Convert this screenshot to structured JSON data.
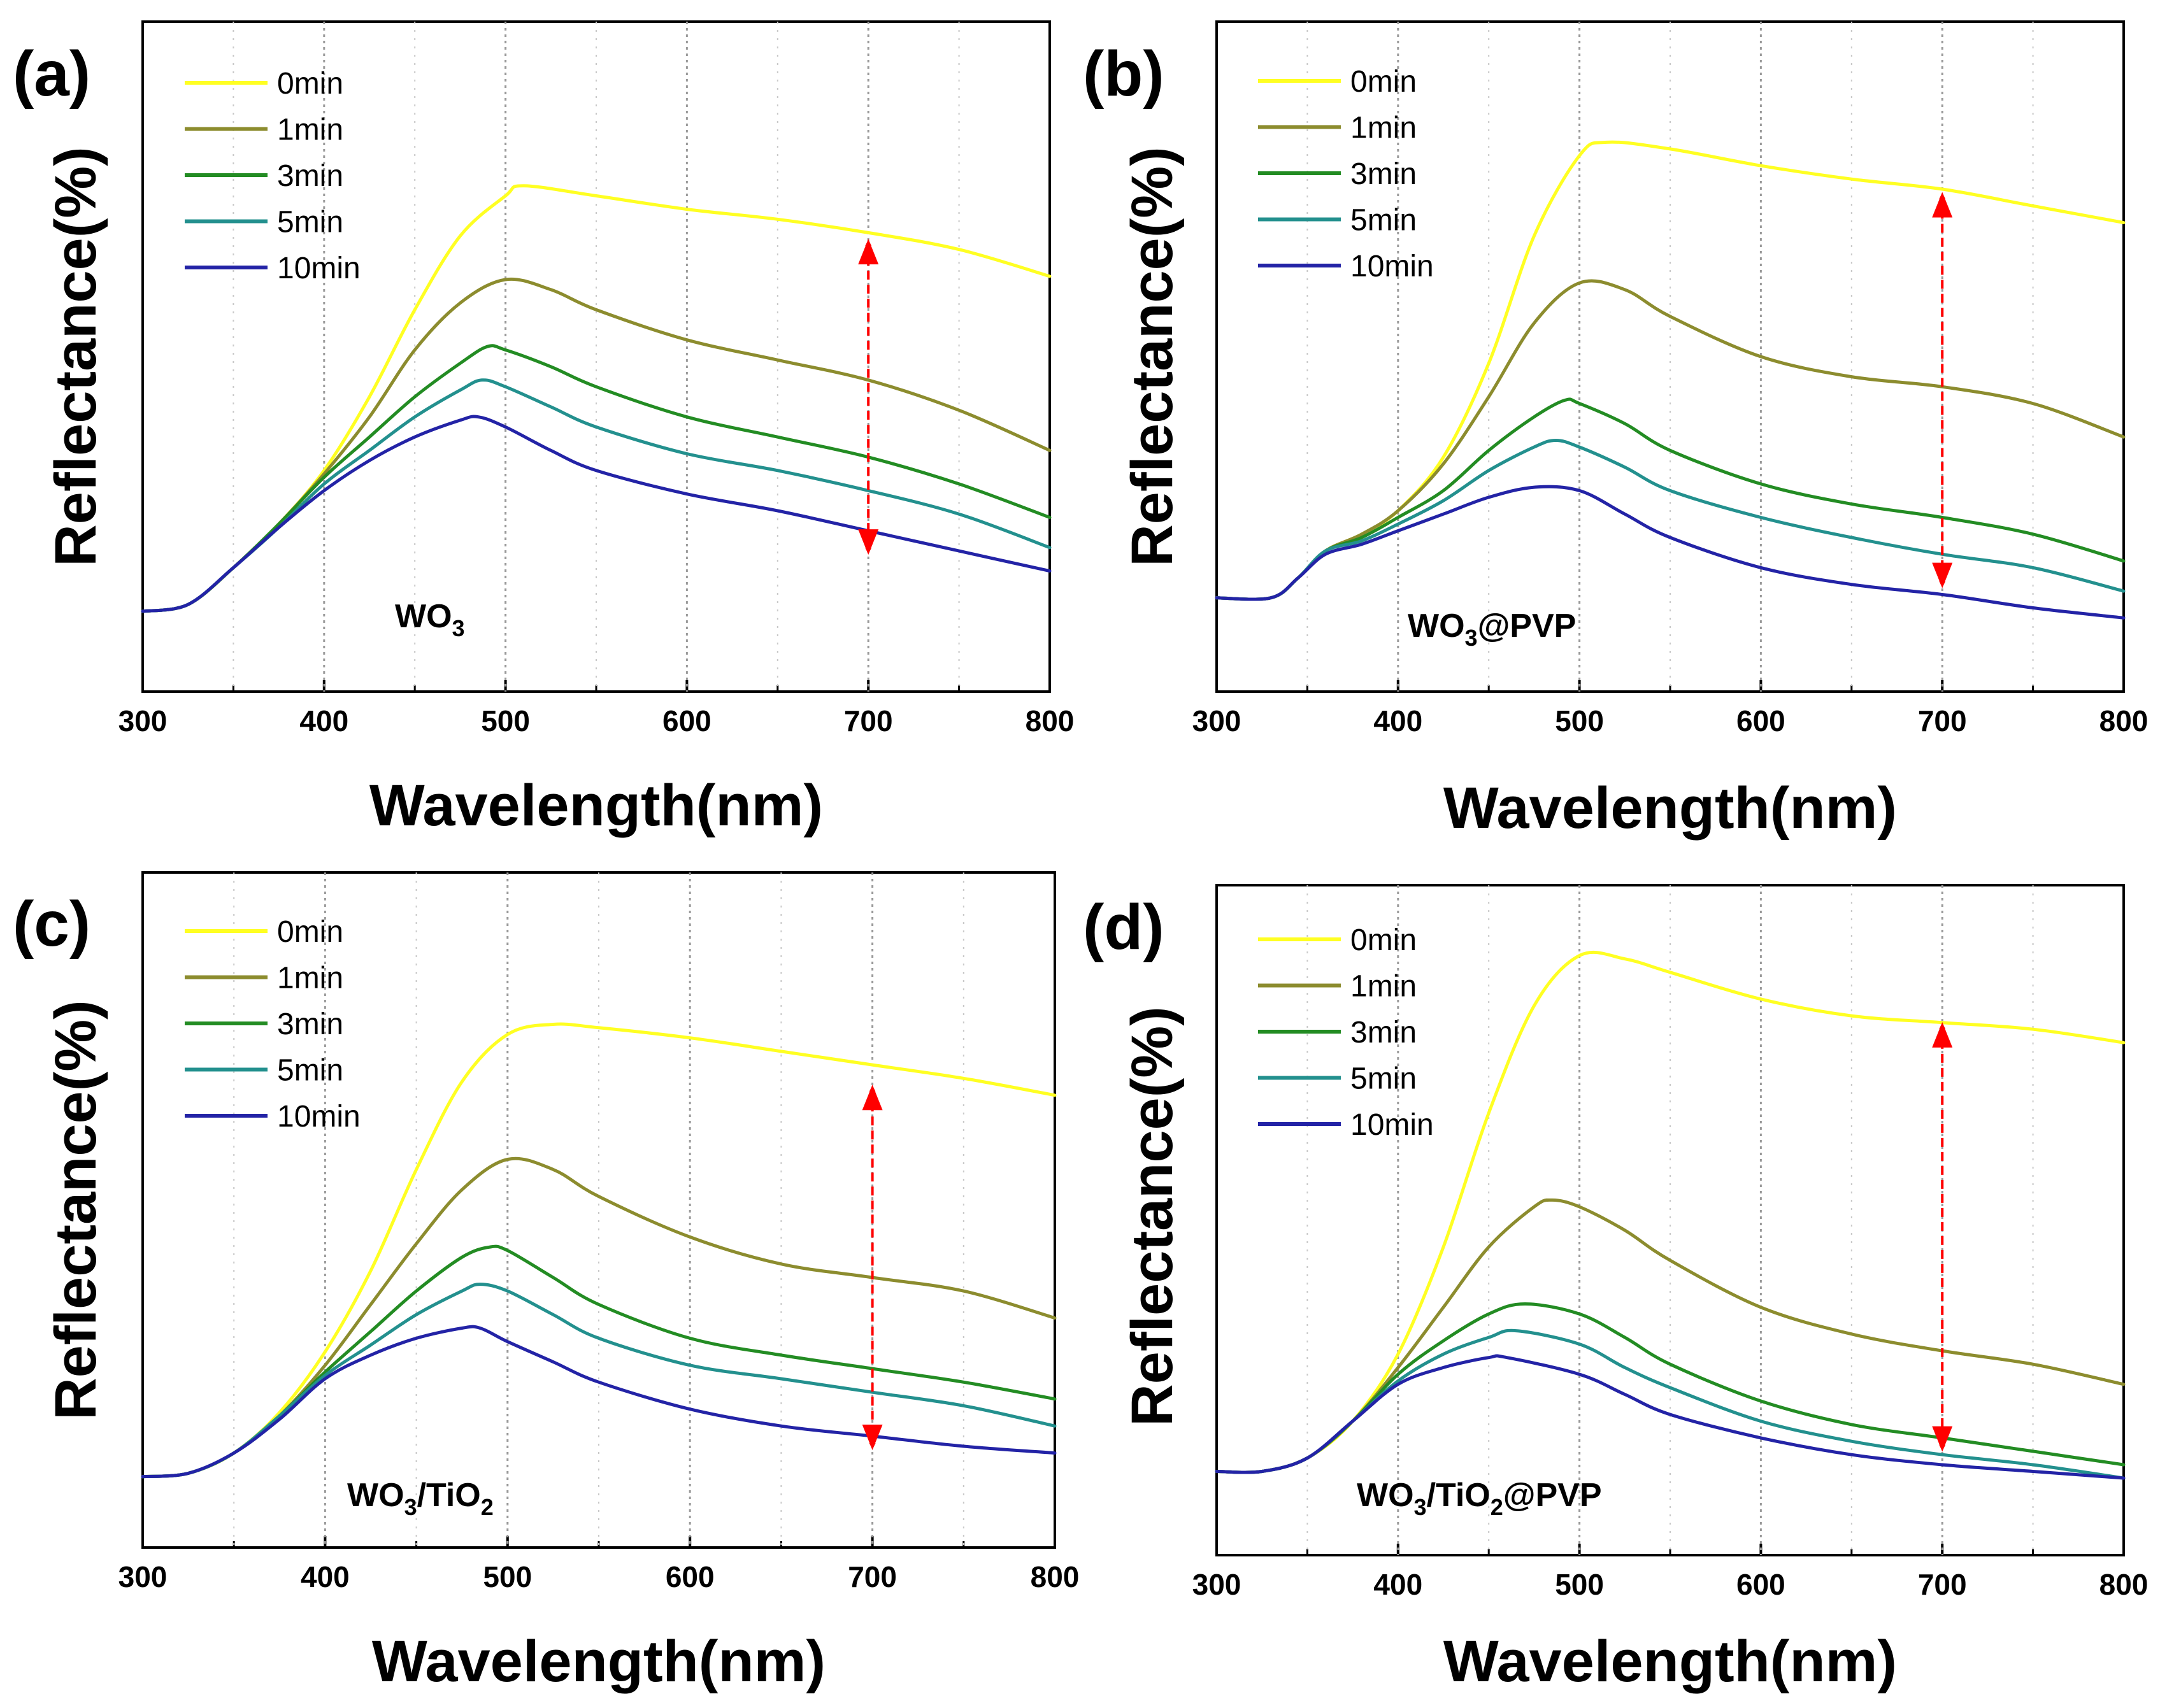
{
  "figure": {
    "colors": {
      "0min": "#ffff22",
      "1min": "#8c8c2e",
      "3min": "#238c23",
      "5min": "#23908e",
      "10min": "#2323a6",
      "arrow": "#ff0000",
      "grid": "#9a9a9a"
    }
  },
  "chart_data": [
    {
      "type": "line",
      "panel_label": "(a)",
      "sample_label": {
        "parts": [
          {
            "text": "WO",
            "sub": false
          },
          {
            "text": "3",
            "sub": true
          }
        ]
      },
      "xlabel": "Wavelength(nm)",
      "ylabel": "Reflectance(%)",
      "xlim": [
        300,
        800
      ],
      "ylim": [
        0,
        100
      ],
      "xticks": [
        "300",
        "400",
        "500",
        "600",
        "700",
        "800"
      ],
      "arrow": {
        "x": 700,
        "y_top": 67,
        "y_bottom": 21
      },
      "series": [
        {
          "name": "0min",
          "x": [
            300,
            325,
            350,
            375,
            400,
            425,
            450,
            475,
            500,
            510,
            550,
            600,
            650,
            700,
            750,
            800
          ],
          "y": [
            12,
            13,
            18.5,
            25,
            33,
            44,
            57,
            68,
            74,
            75.5,
            74,
            72,
            70.5,
            68.5,
            66,
            62
          ]
        },
        {
          "name": "1min",
          "x": [
            300,
            325,
            350,
            375,
            400,
            425,
            450,
            475,
            500,
            525,
            550,
            600,
            650,
            700,
            750,
            800
          ],
          "y": [
            12,
            13,
            18.5,
            25,
            32.5,
            41,
            51,
            58,
            61.5,
            60,
            57,
            52.5,
            49.5,
            46.5,
            42,
            36
          ]
        },
        {
          "name": "3min",
          "x": [
            300,
            325,
            350,
            375,
            400,
            425,
            450,
            475,
            490,
            500,
            525,
            550,
            600,
            650,
            700,
            750,
            800
          ],
          "y": [
            12,
            13,
            18.5,
            25,
            32,
            38,
            44,
            49,
            51.5,
            51,
            48.5,
            45.5,
            41,
            38,
            35,
            31,
            26
          ]
        },
        {
          "name": "5min",
          "x": [
            300,
            325,
            350,
            375,
            400,
            425,
            450,
            475,
            487,
            500,
            525,
            550,
            600,
            650,
            700,
            750,
            800
          ],
          "y": [
            12,
            13,
            18.5,
            24.5,
            31,
            36,
            41,
            45,
            46.5,
            45.5,
            42.5,
            39.5,
            35.5,
            33,
            30,
            26.5,
            21.5
          ]
        },
        {
          "name": "10min",
          "x": [
            300,
            325,
            350,
            375,
            400,
            425,
            450,
            475,
            485,
            500,
            525,
            550,
            600,
            650,
            700,
            750,
            800
          ],
          "y": [
            12,
            13,
            18.5,
            24.5,
            30,
            34.5,
            38,
            40.5,
            41,
            39.5,
            36,
            33,
            29.5,
            27,
            24,
            21,
            18
          ]
        }
      ]
    },
    {
      "type": "line",
      "panel_label": "(b)",
      "sample_label": {
        "parts": [
          {
            "text": "WO",
            "sub": false
          },
          {
            "text": "3",
            "sub": true
          },
          {
            "text": "@PVP",
            "sub": false
          }
        ]
      },
      "xlabel": "Wavelength(nm)",
      "ylabel": "Reflectance(%)",
      "xlim": [
        300,
        800
      ],
      "ylim": [
        0,
        100
      ],
      "xticks": [
        "300",
        "400",
        "500",
        "600",
        "700",
        "800"
      ],
      "arrow": {
        "x": 700,
        "y_top": 74,
        "y_bottom": 16
      },
      "series": [
        {
          "name": "0min",
          "x": [
            300,
            330,
            345,
            360,
            380,
            400,
            425,
            450,
            475,
            500,
            515,
            550,
            600,
            650,
            700,
            750,
            800
          ],
          "y": [
            14,
            14,
            17,
            21,
            23.5,
            27,
            35,
            49,
            68,
            80,
            82,
            81,
            78.5,
            76.5,
            75,
            72.5,
            70
          ]
        },
        {
          "name": "1min",
          "x": [
            300,
            330,
            345,
            360,
            380,
            400,
            425,
            450,
            475,
            500,
            525,
            550,
            600,
            650,
            700,
            750,
            800
          ],
          "y": [
            14,
            14,
            17,
            21,
            23.5,
            27,
            34,
            44,
            55,
            61,
            60,
            56,
            50,
            47,
            45.5,
            43,
            38
          ]
        },
        {
          "name": "3min",
          "x": [
            300,
            330,
            345,
            360,
            380,
            400,
            425,
            450,
            475,
            492,
            500,
            525,
            550,
            600,
            650,
            700,
            750,
            800
          ],
          "y": [
            14,
            14,
            17,
            21,
            23,
            26,
            30,
            36,
            41,
            43.5,
            43,
            40,
            36,
            31,
            28,
            26,
            23.5,
            19.5
          ]
        },
        {
          "name": "5min",
          "x": [
            300,
            330,
            345,
            360,
            380,
            400,
            425,
            450,
            475,
            487,
            500,
            525,
            550,
            600,
            650,
            700,
            750,
            800
          ],
          "y": [
            14,
            14,
            17,
            21,
            22.5,
            25,
            28.5,
            33,
            36.5,
            37.5,
            36.5,
            33.5,
            30,
            26,
            23,
            20.5,
            18.5,
            15
          ]
        },
        {
          "name": "10min",
          "x": [
            300,
            330,
            345,
            360,
            380,
            400,
            425,
            450,
            475,
            500,
            525,
            550,
            600,
            650,
            700,
            750,
            800
          ],
          "y": [
            14,
            14,
            17,
            20.5,
            22,
            24,
            26.5,
            29,
            30.5,
            30,
            26.5,
            23,
            18.5,
            16,
            14.5,
            12.5,
            11
          ]
        }
      ]
    },
    {
      "type": "line",
      "panel_label": "(c)",
      "sample_label": {
        "parts": [
          {
            "text": "WO",
            "sub": false
          },
          {
            "text": "3",
            "sub": true
          },
          {
            "text": "/TiO",
            "sub": false
          },
          {
            "text": "2",
            "sub": true
          }
        ]
      },
      "xlabel": "Wavelength(nm)",
      "ylabel": "Reflectance(%)",
      "xlim": [
        300,
        800
      ],
      "ylim": [
        0,
        100
      ],
      "xticks": [
        "300",
        "400",
        "500",
        "600",
        "700",
        "800"
      ],
      "arrow": {
        "x": 700,
        "y_top": 68,
        "y_bottom": 15
      },
      "series": [
        {
          "name": "0min",
          "x": [
            300,
            325,
            350,
            375,
            400,
            425,
            450,
            475,
            500,
            525,
            550,
            600,
            650,
            700,
            750,
            800
          ],
          "y": [
            10.5,
            11,
            14,
            20,
            29,
            41,
            56,
            69,
            76,
            77.5,
            77,
            75.5,
            73.5,
            71.5,
            69.5,
            67
          ]
        },
        {
          "name": "1min",
          "x": [
            300,
            325,
            350,
            375,
            400,
            425,
            450,
            475,
            500,
            525,
            550,
            600,
            650,
            700,
            750,
            800
          ],
          "y": [
            10.5,
            11,
            14,
            19.5,
            27,
            36,
            45,
            53,
            57.5,
            56,
            52,
            46,
            42,
            40,
            38,
            34
          ]
        },
        {
          "name": "3min",
          "x": [
            300,
            325,
            350,
            375,
            400,
            425,
            450,
            475,
            490,
            500,
            525,
            550,
            600,
            650,
            700,
            750,
            800
          ],
          "y": [
            10.5,
            11,
            14,
            19.5,
            26,
            32,
            38,
            43,
            44.5,
            44,
            40,
            36,
            31,
            28.5,
            26.5,
            24.5,
            22
          ]
        },
        {
          "name": "5min",
          "x": [
            300,
            325,
            350,
            375,
            400,
            425,
            450,
            475,
            485,
            500,
            525,
            550,
            600,
            650,
            700,
            750,
            800
          ],
          "y": [
            10.5,
            11,
            14,
            19.5,
            25.5,
            30,
            34.5,
            38,
            39,
            38,
            34.5,
            31,
            27,
            25,
            23,
            21,
            18
          ]
        },
        {
          "name": "10min",
          "x": [
            300,
            325,
            350,
            375,
            400,
            425,
            450,
            475,
            485,
            500,
            525,
            550,
            600,
            650,
            700,
            750,
            800
          ],
          "y": [
            10.5,
            11,
            14,
            19,
            25,
            28.5,
            31,
            32.5,
            32.5,
            30.5,
            27.5,
            24.5,
            20.5,
            18,
            16.5,
            15,
            14
          ]
        }
      ]
    },
    {
      "type": "line",
      "panel_label": "(d)",
      "sample_label": {
        "parts": [
          {
            "text": "WO",
            "sub": false
          },
          {
            "text": "3",
            "sub": true
          },
          {
            "text": "/TiO",
            "sub": false
          },
          {
            "text": "2",
            "sub": true
          },
          {
            "text": "@PVP",
            "sub": false
          }
        ]
      },
      "xlabel": "Wavelength(nm)",
      "ylabel": "Reflectance(%)",
      "xlim": [
        300,
        800
      ],
      "ylim": [
        0,
        100
      ],
      "xticks": [
        "300",
        "400",
        "500",
        "600",
        "700",
        "800"
      ],
      "arrow": {
        "x": 700,
        "y_top": 79,
        "y_bottom": 16
      },
      "series": [
        {
          "name": "0min",
          "x": [
            300,
            325,
            350,
            375,
            400,
            425,
            450,
            475,
            500,
            525,
            550,
            600,
            650,
            700,
            750,
            800
          ],
          "y": [
            12.5,
            12.5,
            14.5,
            20,
            30,
            46,
            66,
            82,
            89.5,
            89,
            87,
            83,
            80.5,
            79.5,
            78.5,
            76.5
          ]
        },
        {
          "name": "1min",
          "x": [
            300,
            325,
            350,
            375,
            400,
            425,
            450,
            475,
            485,
            500,
            525,
            550,
            600,
            650,
            700,
            750,
            800
          ],
          "y": [
            12.5,
            12.5,
            14.5,
            20,
            28,
            37,
            46,
            52,
            53,
            52,
            48.5,
            44,
            37,
            33,
            30.5,
            28.5,
            25.5
          ]
        },
        {
          "name": "3min",
          "x": [
            300,
            325,
            350,
            375,
            400,
            425,
            450,
            470,
            500,
            525,
            550,
            600,
            650,
            700,
            750,
            800
          ],
          "y": [
            12.5,
            12.5,
            14.5,
            20,
            27,
            32,
            36,
            37.5,
            36,
            32.5,
            28.5,
            23,
            19.5,
            17.5,
            15.5,
            13.5
          ]
        },
        {
          "name": "5min",
          "x": [
            300,
            325,
            350,
            375,
            400,
            425,
            450,
            465,
            500,
            525,
            550,
            600,
            650,
            700,
            750,
            800
          ],
          "y": [
            12.5,
            12.5,
            14.5,
            20,
            26,
            30,
            32.5,
            33.5,
            31.5,
            28,
            25,
            20,
            17,
            15,
            13.5,
            11.5
          ]
        },
        {
          "name": "10min",
          "x": [
            300,
            325,
            350,
            375,
            400,
            425,
            450,
            460,
            500,
            525,
            550,
            600,
            650,
            700,
            750,
            800
          ],
          "y": [
            12.5,
            12.5,
            14.5,
            20,
            25.5,
            28,
            29.5,
            29.5,
            27,
            24,
            21,
            17.5,
            15,
            13.5,
            12.5,
            11.5
          ]
        }
      ]
    }
  ]
}
